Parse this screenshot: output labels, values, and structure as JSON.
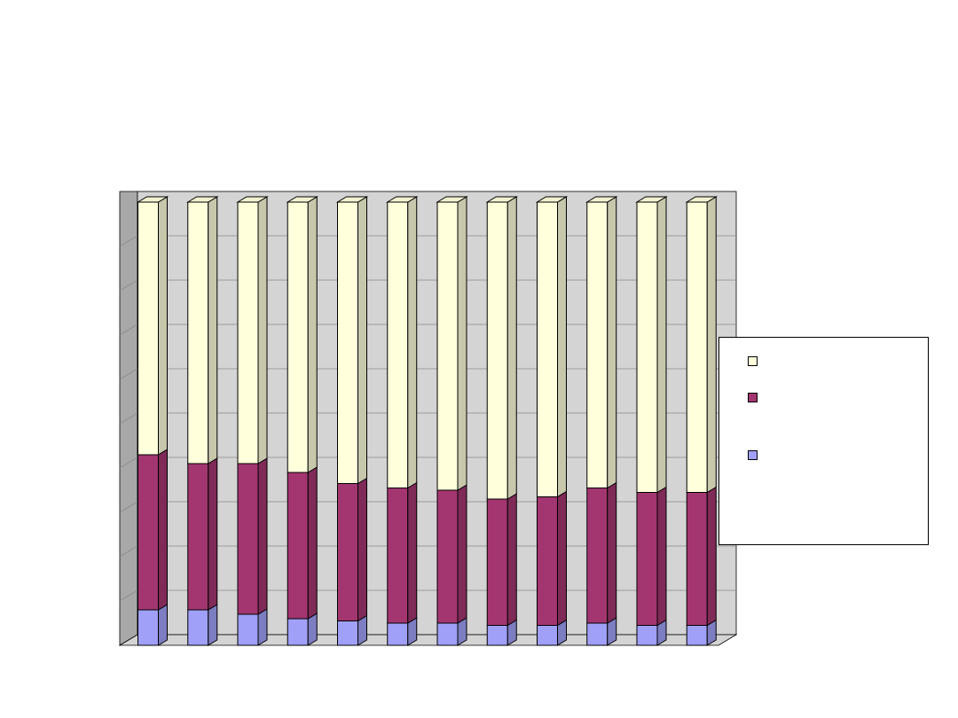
{
  "colors": {
    "wall": "#d4d4d4",
    "side_wall": "#a8a8a8",
    "grid": "#8a8a8a",
    "segment_top": "#ffffdc",
    "segment_middle": "#a33670",
    "segment_bottom": "#a0a0f8"
  },
  "chart_data": {
    "type": "bar",
    "stacked": true,
    "percent_stacked": true,
    "three_d": true,
    "title": "",
    "xlabel": "",
    "ylabel": "",
    "ylim": [
      0,
      100
    ],
    "grid": true,
    "legend_position": "right",
    "categories": [
      "",
      "",
      "",
      "",
      "",
      "",
      "",
      "",
      "",
      "",
      "",
      ""
    ],
    "series": [
      {
        "color": "#a0a0f8",
        "values": [
          8,
          8,
          7,
          6,
          5.5,
          5,
          5,
          4.5,
          4.5,
          5,
          4.5,
          4.5
        ]
      },
      {
        "color": "#a33670",
        "values": [
          35,
          33,
          34,
          33,
          31,
          30.5,
          30,
          28.5,
          29,
          30.5,
          30,
          30
        ]
      },
      {
        "color": "#ffffdc",
        "values": [
          57,
          59,
          59,
          61,
          63.5,
          64.5,
          65,
          67,
          66.5,
          64.5,
          65.5,
          65.5
        ]
      }
    ]
  },
  "legend": {
    "items": [
      {
        "label": "",
        "color": "#ffffdc"
      },
      {
        "label": "",
        "color": "#a33670"
      },
      {
        "label": "",
        "color": "#a0a0f8"
      }
    ]
  }
}
